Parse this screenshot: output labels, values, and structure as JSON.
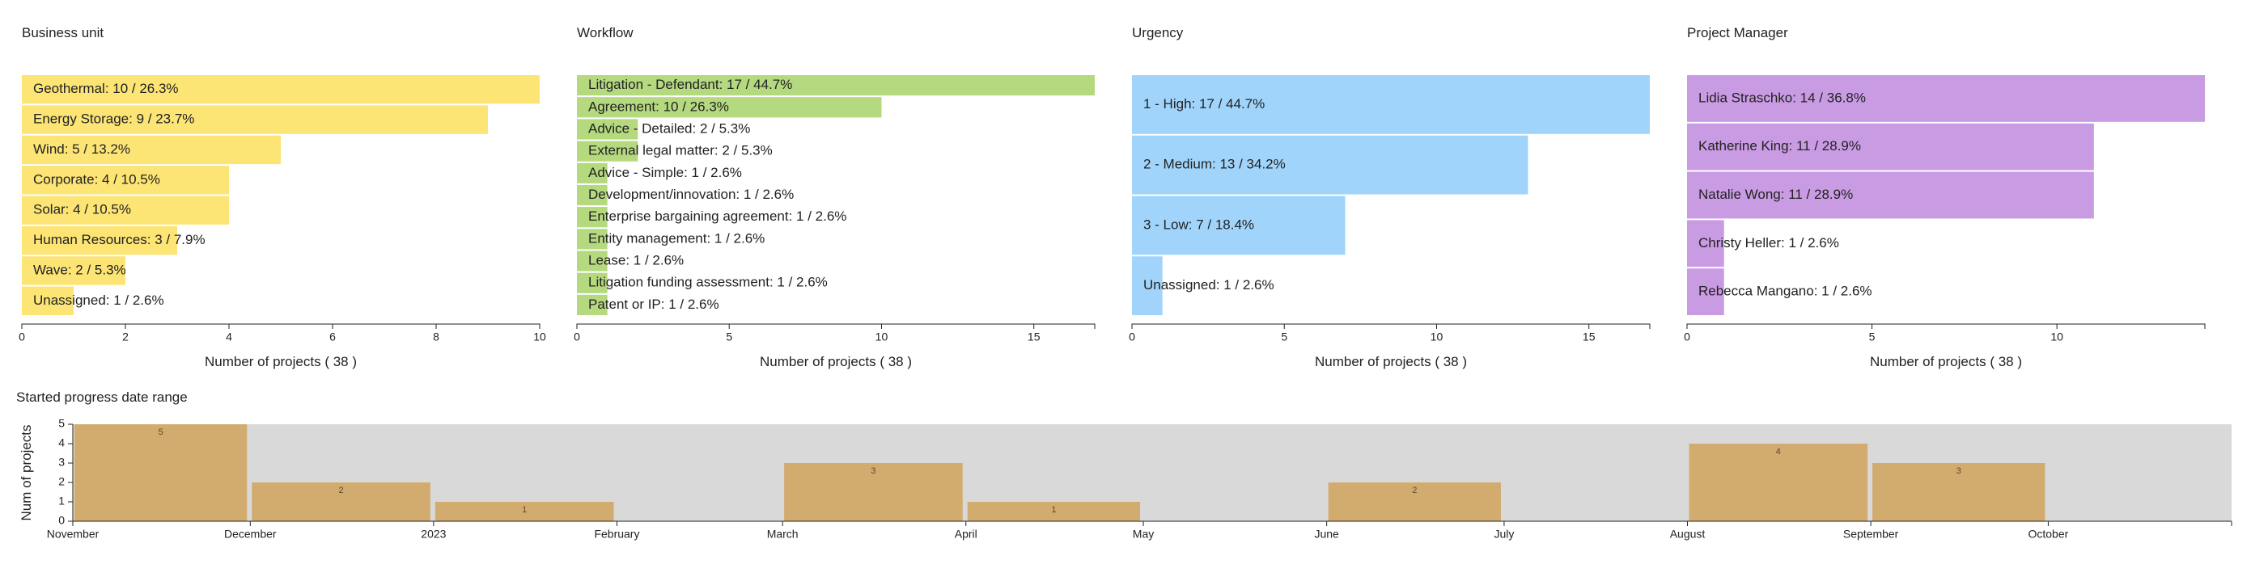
{
  "panels": [
    {
      "title": "Business unit",
      "chart_data": {
        "type": "bar",
        "orientation": "horizontal",
        "color": "#fce475",
        "categories": [
          "Geothermal",
          "Energy Storage",
          "Wind",
          "Corporate",
          "Solar",
          "Human Resources",
          "Wave",
          "Unassigned"
        ],
        "values": [
          10,
          9,
          5,
          4,
          4,
          3,
          2,
          1
        ],
        "labels": [
          "Geothermal: 10 / 26.3%",
          "Energy Storage: 9 / 23.7%",
          "Wind: 5 / 13.2%",
          "Corporate: 4 / 10.5%",
          "Solar: 4 / 10.5%",
          "Human Resources: 3 / 7.9%",
          "Wave: 2 / 5.3%",
          "Unassigned: 1 / 2.6%"
        ],
        "xlim": [
          0,
          10
        ],
        "xticks": [
          0,
          2,
          4,
          6,
          8,
          10
        ],
        "xlabel": "Number of projects ( 38 )"
      }
    },
    {
      "title": "Workflow",
      "chart_data": {
        "type": "bar",
        "orientation": "horizontal",
        "color": "#b5d97e",
        "categories": [
          "Litigation - Defendant",
          "Agreement",
          "Advice - Detailed",
          "External legal matter",
          "Advice - Simple",
          "Development/innovation",
          "Enterprise bargaining agreement",
          "Entity management",
          "Lease",
          "Litigation funding assessment",
          "Patent or IP"
        ],
        "values": [
          17,
          10,
          2,
          2,
          1,
          1,
          1,
          1,
          1,
          1,
          1
        ],
        "labels": [
          "Litigation - Defendant: 17 / 44.7%",
          "Agreement: 10 / 26.3%",
          "Advice - Detailed: 2 / 5.3%",
          "External legal matter: 2 / 5.3%",
          "Advice - Simple: 1 / 2.6%",
          "Development/innovation: 1 / 2.6%",
          "Enterprise bargaining agreement: 1 / 2.6%",
          "Entity management: 1 / 2.6%",
          "Lease: 1 / 2.6%",
          "Litigation funding assessment: 1 / 2.6%",
          "Patent or IP: 1 / 2.6%"
        ],
        "xlim": [
          0,
          17
        ],
        "xticks": [
          0,
          5,
          10,
          15
        ],
        "xlabel": "Number of projects ( 38 )"
      }
    },
    {
      "title": "Urgency",
      "chart_data": {
        "type": "bar",
        "orientation": "horizontal",
        "color": "#a1d4fa",
        "categories": [
          "1 - High",
          "2 - Medium",
          "3 - Low",
          "Unassigned"
        ],
        "values": [
          17,
          13,
          7,
          1
        ],
        "labels": [
          "1 - High: 17 / 44.7%",
          "2 - Medium: 13 / 34.2%",
          "3 - Low: 7 / 18.4%",
          "Unassigned: 1 / 2.6%"
        ],
        "xlim": [
          0,
          17
        ],
        "xticks": [
          0,
          5,
          10,
          15
        ],
        "xlabel": "Number of projects ( 38 )"
      }
    },
    {
      "title": "Project Manager",
      "chart_data": {
        "type": "bar",
        "orientation": "horizontal",
        "color": "#c99be3",
        "categories": [
          "Lidia Straschko",
          "Katherine King",
          "Natalie Wong",
          "Christy Heller",
          "Rebecca Mangano"
        ],
        "values": [
          14,
          11,
          11,
          1,
          1
        ],
        "labels": [
          "Lidia Straschko: 14 / 36.8%",
          "Katherine King: 11 / 28.9%",
          "Natalie Wong: 11 / 28.9%",
          "Christy Heller: 1 / 2.6%",
          "Rebecca Mangano: 1 / 2.6%"
        ],
        "xlim": [
          0,
          14
        ],
        "xticks": [
          0,
          5,
          10
        ],
        "xlabel": "Number of projects ( 38 )"
      }
    }
  ],
  "timeline": {
    "title": "Started progress date range",
    "chart_data": {
      "type": "bar",
      "color": "#d2ab6f",
      "background": "#d9d9d9",
      "ylabel": "Num of projects",
      "ylim": [
        0,
        5
      ],
      "yticks": [
        0,
        1,
        2,
        3,
        4,
        5
      ],
      "xlim": [
        "2022-11-01",
        "2023-11-01"
      ],
      "month_ticks": [
        {
          "date": "2022-11-01",
          "label": "November"
        },
        {
          "date": "2022-12-01",
          "label": "December"
        },
        {
          "date": "2023-01-01",
          "label": "2023"
        },
        {
          "date": "2023-02-01",
          "label": "February"
        },
        {
          "date": "2023-03-01",
          "label": "March"
        },
        {
          "date": "2023-04-01",
          "label": "April"
        },
        {
          "date": "2023-05-01",
          "label": "May"
        },
        {
          "date": "2023-06-01",
          "label": "June"
        },
        {
          "date": "2023-07-01",
          "label": "July"
        },
        {
          "date": "2023-08-01",
          "label": "August"
        },
        {
          "date": "2023-09-01",
          "label": "September"
        },
        {
          "date": "2023-10-01",
          "label": "October"
        },
        {
          "date": "2023-11-01",
          "label": ""
        }
      ],
      "bars": [
        {
          "start": "2022-11-01",
          "end": "2022-12-01",
          "value": 5
        },
        {
          "start": "2022-12-01",
          "end": "2023-01-01",
          "value": 2
        },
        {
          "start": "2023-01-01",
          "end": "2023-02-01",
          "value": 1
        },
        {
          "start": "2023-03-01",
          "end": "2023-04-01",
          "value": 3
        },
        {
          "start": "2023-04-01",
          "end": "2023-05-01",
          "value": 1
        },
        {
          "start": "2023-06-01",
          "end": "2023-07-01",
          "value": 2
        },
        {
          "start": "2023-08-01",
          "end": "2023-09-01",
          "value": 4
        },
        {
          "start": "2023-09-01",
          "end": "2023-10-01",
          "value": 3
        }
      ]
    }
  }
}
